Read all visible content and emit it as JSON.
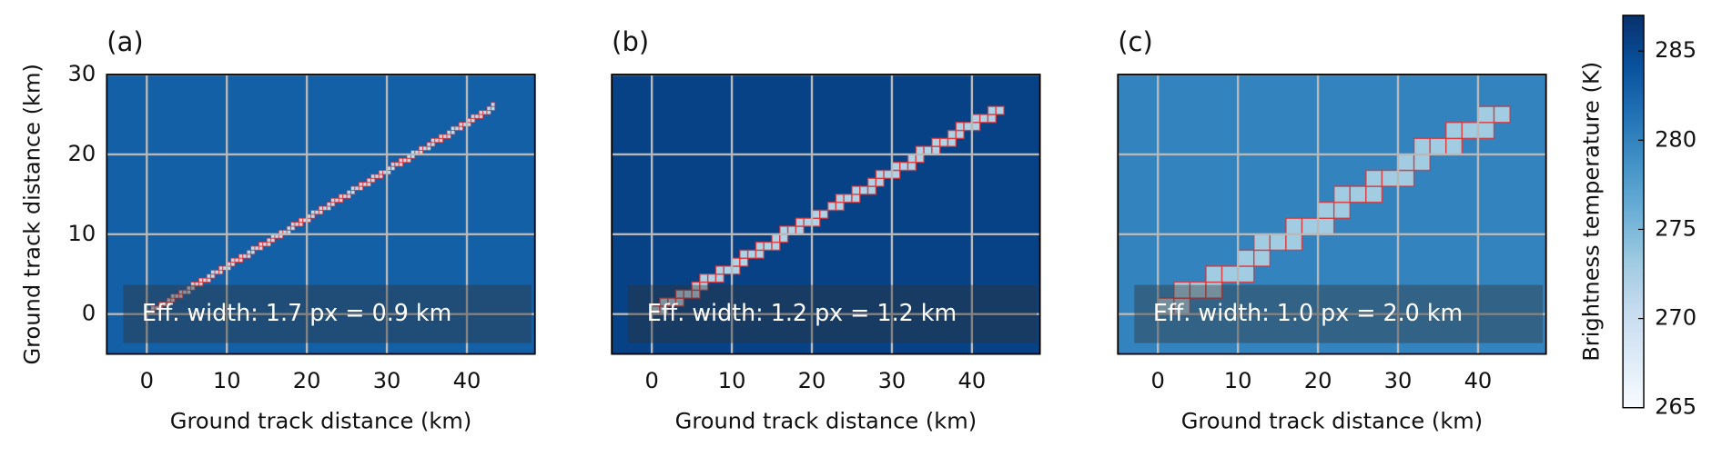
{
  "chart_data": [
    {
      "type": "heatmap",
      "label": "(a)",
      "annotation": "Eff. width: 1.7 px = 0.9 km",
      "xlabel": "Ground track distance (km)",
      "ylabel": "Ground track distance (km)",
      "xlim": [
        -5,
        48.5
      ],
      "ylim": [
        -5,
        30
      ],
      "xticks": [
        0,
        10,
        20,
        30,
        40
      ],
      "yticks": [
        0,
        10,
        20,
        30
      ],
      "grid": true,
      "background": 283,
      "line_value": 271,
      "line_x": [
        0,
        43.5
      ],
      "line_y": [
        0,
        26
      ],
      "pixel_km": 0.5
    },
    {
      "type": "heatmap",
      "label": "(b)",
      "annotation": "Eff. width: 1.2 px = 1.2 km",
      "xlabel": "Ground track distance (km)",
      "xlim": [
        -5,
        48.5
      ],
      "ylim": [
        -5,
        30
      ],
      "xticks": [
        0,
        10,
        20,
        30,
        40
      ],
      "grid": true,
      "background": 285.5,
      "line_value": 272,
      "line_x": [
        0,
        44
      ],
      "line_y": [
        0,
        26
      ],
      "pixel_km": 1
    },
    {
      "type": "heatmap",
      "label": "(c)",
      "annotation": "Eff. width: 1.0 px = 2.0 km",
      "xlabel": "Ground track distance (km)",
      "xlim": [
        -5,
        48.5
      ],
      "ylim": [
        -5,
        30
      ],
      "xticks": [
        0,
        10,
        20,
        30,
        40
      ],
      "grid": true,
      "background": 280,
      "line_value": 273,
      "line_x": [
        0,
        44
      ],
      "line_y": [
        0,
        26
      ],
      "pixel_km": 2
    },
    {
      "type": "colorbar",
      "label": "Brightness temperature (K)",
      "colormap": "Blues",
      "ylim": [
        265,
        287
      ],
      "yticks": [
        265,
        270,
        275,
        280,
        285
      ]
    }
  ]
}
